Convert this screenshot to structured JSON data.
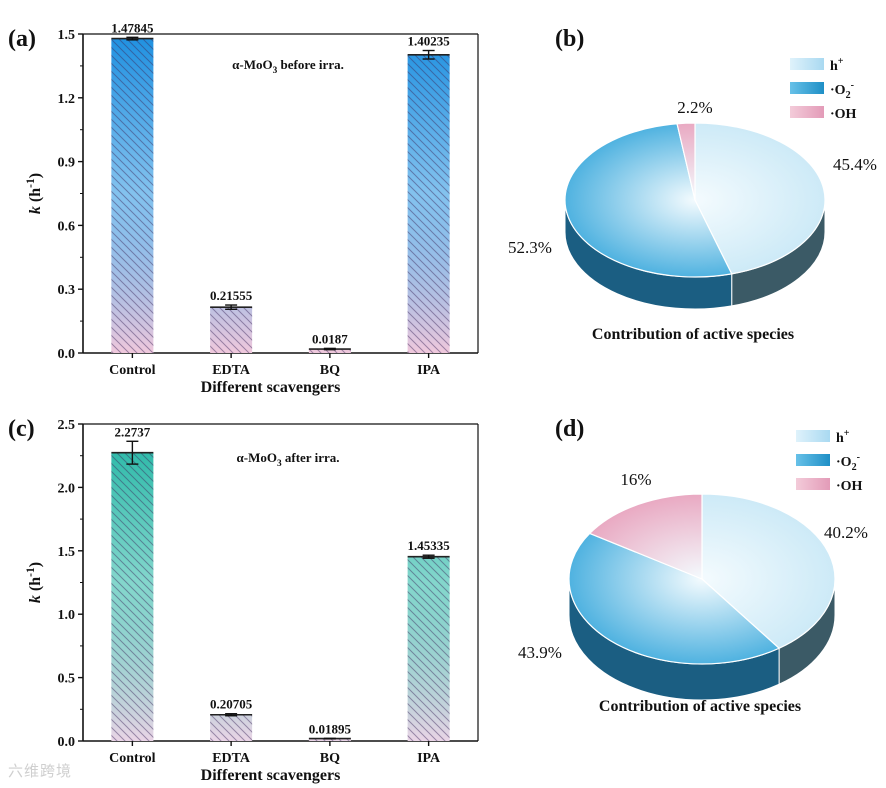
{
  "chart_data": [
    {
      "panel": "(a)",
      "type": "bar",
      "annotation": "α-MoO3 before irra.",
      "xlabel": "Different scavengers",
      "ylabel": "k (h-1)",
      "categories": [
        "Control",
        "EDTA",
        "BQ",
        "IPA"
      ],
      "values": [
        1.47845,
        0.21555,
        0.0187,
        1.40235
      ],
      "value_labels": [
        "1.47845",
        "0.21555",
        "0.0187",
        "1.40235"
      ],
      "errors": [
        0.006,
        0.01,
        0.003,
        0.02
      ],
      "ylim": [
        0,
        1.5
      ],
      "yticks": [
        "0.0",
        "0.3",
        "0.6",
        "0.9",
        "1.2",
        "1.5"
      ],
      "bar_colors": {
        "top": "#1e90e0",
        "bottom": "#f0c8dc"
      }
    },
    {
      "panel": "(b)",
      "type": "pie",
      "title": "Contribution of active species",
      "legend": [
        "h+",
        "·O2-",
        "·OH"
      ],
      "values": [
        45.4,
        52.3,
        2.2
      ],
      "labels": [
        "45.4%",
        "52.3%",
        "2.2%"
      ],
      "colors": [
        "#bfe4f6",
        "#3aa9dc",
        "#e8a6c0"
      ]
    },
    {
      "panel": "(c)",
      "type": "bar",
      "annotation": "α-MoO3 after irra.",
      "xlabel": "Different scavengers",
      "ylabel": "k (h-1)",
      "categories": [
        "Control",
        "EDTA",
        "BQ",
        "IPA"
      ],
      "values": [
        2.2737,
        0.20705,
        0.01895,
        1.45335
      ],
      "value_labels": [
        "2.2737",
        "0.20705",
        "0.01895",
        "1.45335"
      ],
      "errors": [
        0.09,
        0.008,
        0.002,
        0.012
      ],
      "ylim": [
        0,
        2.5
      ],
      "yticks": [
        "0.0",
        "0.5",
        "1.0",
        "1.5",
        "2.0",
        "2.5"
      ],
      "bar_colors": {
        "top": "#1fb5a3",
        "bottom": "#ead4e6"
      }
    },
    {
      "panel": "(d)",
      "type": "pie",
      "title": "Contribution of active species",
      "legend": [
        "h+",
        "·O2-",
        "·OH"
      ],
      "values": [
        40.2,
        43.9,
        16
      ],
      "labels": [
        "40.2%",
        "43.9%",
        "16%"
      ],
      "colors": [
        "#bfe4f6",
        "#3aa9dc",
        "#e8a6c0"
      ]
    }
  ],
  "watermark": "六维跨境"
}
